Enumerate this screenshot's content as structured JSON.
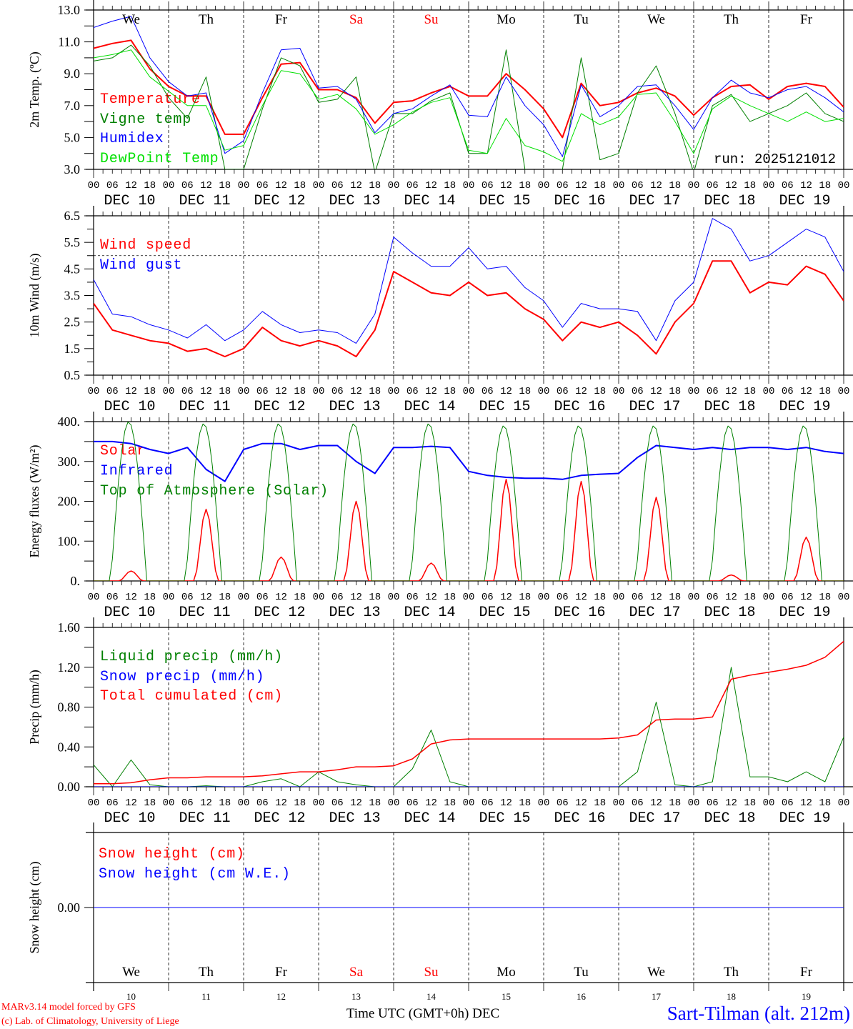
{
  "title": "Sart-Tilman (alt. 212m)",
  "credits": [
    "MARv3.14 model forced by GFS",
    "(c) Lab. of Climatology, University of Liege"
  ],
  "xaxis_title": "Time UTC (GMT+0h) DEC",
  "run_label": "run: 2025121012",
  "weekdays": [
    "We",
    "Th",
    "Fr",
    "Sa",
    "Su",
    "Mo",
    "Tu",
    "We",
    "Th",
    "Fr"
  ],
  "weekday_colors": [
    "#000000",
    "#000000",
    "#000000",
    "#ff0000",
    "#ff0000",
    "#000000",
    "#000000",
    "#000000",
    "#000000",
    "#000000"
  ],
  "date_labels": [
    "DEC 10",
    "DEC 11",
    "DEC 12",
    "DEC 13",
    "DEC 14",
    "DEC 15",
    "DEC 16",
    "DEC 17",
    "DEC 18",
    "DEC 19"
  ],
  "day_numbers": [
    "10",
    "11",
    "12",
    "13",
    "14",
    "15",
    "16",
    "17",
    "18",
    "19"
  ],
  "hour_labels": [
    "00",
    "06",
    "12",
    "18"
  ],
  "colors": {
    "red": "#ff0000",
    "green": "#008000",
    "blue": "#0000ff",
    "lightgreen": "#00e000",
    "grid": "#000000"
  },
  "chart_data": [
    {
      "type": "line",
      "ylabel": "2m Temp. (ºC)",
      "ylim": [
        3,
        13
      ],
      "yticks": [
        "3.0",
        "5.0",
        "7.0",
        "9.0",
        "11.0",
        "13.0"
      ],
      "ytick_values": [
        3,
        5,
        7,
        9,
        11,
        13
      ],
      "x_hours_step": 6,
      "series": [
        {
          "name": "Temperature",
          "color": "#ff0000",
          "width": 2,
          "values": [
            10.6,
            10.9,
            11.1,
            9.3,
            8.2,
            7.6,
            7.6,
            5.2,
            5.2,
            7.5,
            9.6,
            9.7,
            8.0,
            8.0,
            7.5,
            5.9,
            7.2,
            7.3,
            7.8,
            8.2,
            7.6,
            7.6,
            9.0,
            8.0,
            6.8,
            5.0,
            8.4,
            7.0,
            7.2,
            7.8,
            8.1,
            7.6,
            6.4,
            7.5,
            8.2,
            8.3,
            7.4,
            8.2,
            8.4,
            8.2,
            6.9
          ]
        },
        {
          "name": "Vigne temp",
          "color": "#008000",
          "width": 1,
          "values": [
            9.8,
            10.0,
            10.8,
            9.5,
            7.5,
            6.2,
            8.8,
            3.0,
            3.0,
            6.8,
            10.0,
            9.5,
            7.2,
            7.4,
            8.8,
            2.8,
            6.5,
            6.5,
            7.3,
            7.8,
            4.0,
            4.0,
            10.5,
            3.0,
            2.8,
            3.0,
            10.0,
            3.6,
            4.0,
            7.8,
            9.5,
            6.5,
            2.8,
            7.0,
            7.7,
            6.0,
            6.5,
            7.0,
            7.8,
            6.5,
            6.0
          ]
        },
        {
          "name": "Humidex",
          "color": "#0000ff",
          "width": 1,
          "values": [
            11.9,
            12.3,
            12.6,
            10.0,
            8.5,
            7.6,
            7.8,
            4.0,
            4.8,
            7.8,
            10.5,
            10.6,
            8.1,
            8.2,
            7.4,
            5.3,
            6.5,
            6.8,
            7.6,
            8.3,
            6.4,
            6.3,
            8.8,
            7.0,
            5.8,
            3.8,
            8.3,
            6.3,
            7.0,
            8.2,
            8.3,
            7.0,
            5.5,
            7.5,
            8.6,
            7.8,
            7.5,
            8.0,
            8.2,
            7.5,
            6.6
          ]
        },
        {
          "name": "DewPoint Temp",
          "color": "#00e000",
          "width": 1,
          "values": [
            10.0,
            10.2,
            10.5,
            8.8,
            7.9,
            7.0,
            7.0,
            4.2,
            4.5,
            7.0,
            9.2,
            9.0,
            7.4,
            7.7,
            6.8,
            5.2,
            5.8,
            6.6,
            7.2,
            7.5,
            4.2,
            4.0,
            6.2,
            4.5,
            4.1,
            3.5,
            6.5,
            5.8,
            6.3,
            7.7,
            7.8,
            6.0,
            4.0,
            6.8,
            7.6,
            7.0,
            6.5,
            6.0,
            6.6,
            6.0,
            6.2
          ]
        }
      ]
    },
    {
      "type": "line",
      "ylabel": "10m Wind (m/s)",
      "ylim": [
        0.5,
        6.5
      ],
      "yticks": [
        "0.5",
        "1.5",
        "2.5",
        "3.5",
        "4.5",
        "5.5",
        "6.5"
      ],
      "ytick_values": [
        0.5,
        1.5,
        2.5,
        3.5,
        4.5,
        5.5,
        6.5
      ],
      "reference_line": 5.0,
      "x_hours_step": 6,
      "series": [
        {
          "name": "Wind speed",
          "color": "#ff0000",
          "width": 2,
          "values": [
            3.2,
            2.2,
            2.0,
            1.8,
            1.7,
            1.4,
            1.5,
            1.2,
            1.5,
            2.3,
            1.8,
            1.6,
            1.8,
            1.6,
            1.2,
            2.2,
            4.4,
            4.0,
            3.6,
            3.5,
            4.0,
            3.5,
            3.6,
            3.0,
            2.6,
            1.8,
            2.5,
            2.3,
            2.5,
            2.0,
            1.3,
            2.5,
            3.2,
            4.8,
            4.8,
            3.6,
            4.0,
            3.9,
            4.6,
            4.3,
            3.3
          ]
        },
        {
          "name": "Wind gust",
          "color": "#0000ff",
          "width": 1,
          "values": [
            4.1,
            2.8,
            2.7,
            2.4,
            2.2,
            1.9,
            2.4,
            1.8,
            2.2,
            2.9,
            2.4,
            2.1,
            2.2,
            2.1,
            1.7,
            2.8,
            5.7,
            5.1,
            4.6,
            4.6,
            5.3,
            4.5,
            4.6,
            3.8,
            3.3,
            2.3,
            3.2,
            3.0,
            3.0,
            2.9,
            1.8,
            3.3,
            4.0,
            6.4,
            6.0,
            4.8,
            5.0,
            5.5,
            6.0,
            5.7,
            4.4
          ]
        }
      ]
    },
    {
      "type": "line",
      "ylabel": "Energy fluxes (W/m²)",
      "ylim": [
        0,
        400
      ],
      "yticks": [
        "0.",
        "100.",
        "200.",
        "300.",
        "400."
      ],
      "ytick_values": [
        0,
        100,
        200,
        300,
        400
      ],
      "x_hours_step": 6,
      "series": [
        {
          "name": "Solar",
          "color": "#ff0000",
          "width": 1.5,
          "daily_peaks": [
            25,
            180,
            60,
            200,
            45,
            255,
            250,
            210,
            15,
            110
          ]
        },
        {
          "name": "Infrared",
          "color": "#0000ff",
          "width": 2,
          "values": [
            350,
            350,
            345,
            330,
            320,
            335,
            280,
            250,
            330,
            345,
            345,
            330,
            340,
            340,
            300,
            270,
            335,
            335,
            338,
            335,
            275,
            265,
            260,
            258,
            258,
            255,
            265,
            268,
            270,
            310,
            340,
            335,
            330,
            335,
            330,
            335,
            335,
            330,
            335,
            325,
            320
          ]
        },
        {
          "name": "Top of Atmosphere (Solar)",
          "color": "#008000",
          "width": 1,
          "daily_peaks": [
            400,
            395,
            395,
            395,
            395,
            390,
            390,
            390,
            390,
            390
          ]
        }
      ]
    },
    {
      "type": "line",
      "ylabel": "Precip (mm/h)",
      "ylim": [
        0,
        1.6
      ],
      "yticks": [
        "0.00",
        "0.40",
        "0.80",
        "1.20",
        "1.60"
      ],
      "ytick_values": [
        0,
        0.4,
        0.8,
        1.2,
        1.6
      ],
      "x_hours_step": 6,
      "series": [
        {
          "name": "Liquid precip (mm/h)",
          "color": "#008000",
          "width": 1,
          "values": [
            0.22,
            0.0,
            0.27,
            0.02,
            0.0,
            0.0,
            0.01,
            0.0,
            0.0,
            0.05,
            0.08,
            0.0,
            0.15,
            0.05,
            0.02,
            0.0,
            0.0,
            0.18,
            0.57,
            0.05,
            0,
            0,
            0,
            0,
            0,
            0,
            0,
            0,
            0,
            0.15,
            0.85,
            0.02,
            0.0,
            0.05,
            1.2,
            0.1,
            0.1,
            0.05,
            0.15,
            0.05,
            0.5
          ]
        },
        {
          "name": "Snow precip (mm/h)",
          "color": "#0000ff",
          "width": 1,
          "values": [
            0,
            0,
            0,
            0,
            0,
            0,
            0,
            0,
            0,
            0,
            0,
            0,
            0,
            0,
            0,
            0,
            0,
            0,
            0,
            0,
            0,
            0,
            0,
            0,
            0,
            0,
            0,
            0,
            0,
            0,
            0,
            0,
            0,
            0,
            0,
            0,
            0,
            0,
            0,
            0,
            0
          ]
        },
        {
          "name": "Total cumulated (cm)",
          "color": "#ff0000",
          "width": 1.5,
          "values": [
            0.03,
            0.03,
            0.04,
            0.07,
            0.09,
            0.09,
            0.1,
            0.1,
            0.1,
            0.11,
            0.13,
            0.15,
            0.15,
            0.17,
            0.2,
            0.2,
            0.21,
            0.28,
            0.43,
            0.47,
            0.48,
            0.48,
            0.48,
            0.48,
            0.48,
            0.48,
            0.48,
            0.48,
            0.49,
            0.52,
            0.67,
            0.68,
            0.68,
            0.7,
            1.08,
            1.12,
            1.15,
            1.18,
            1.22,
            1.3,
            1.46
          ]
        }
      ]
    },
    {
      "type": "line",
      "ylabel": "Snow height (cm)",
      "ylim": [
        -1,
        1
      ],
      "yticks": [
        "0.00"
      ],
      "ytick_values": [
        0
      ],
      "x_hours_step": 6,
      "series": [
        {
          "name": "Snow height (cm)",
          "color": "#ff0000",
          "width": 1,
          "values": [
            0,
            0,
            0,
            0,
            0,
            0,
            0,
            0,
            0,
            0,
            0,
            0,
            0,
            0,
            0,
            0,
            0,
            0,
            0,
            0,
            0,
            0,
            0,
            0,
            0,
            0,
            0,
            0,
            0,
            0,
            0,
            0,
            0,
            0,
            0,
            0,
            0,
            0,
            0,
            0,
            0
          ]
        },
        {
          "name": "Snow height (cm W.E.)",
          "color": "#0000ff",
          "width": 1,
          "values": [
            0,
            0,
            0,
            0,
            0,
            0,
            0,
            0,
            0,
            0,
            0,
            0,
            0,
            0,
            0,
            0,
            0,
            0,
            0,
            0,
            0,
            0,
            0,
            0,
            0,
            0,
            0,
            0,
            0,
            0,
            0,
            0,
            0,
            0,
            0,
            0,
            0,
            0,
            0,
            0,
            0
          ]
        }
      ]
    }
  ]
}
